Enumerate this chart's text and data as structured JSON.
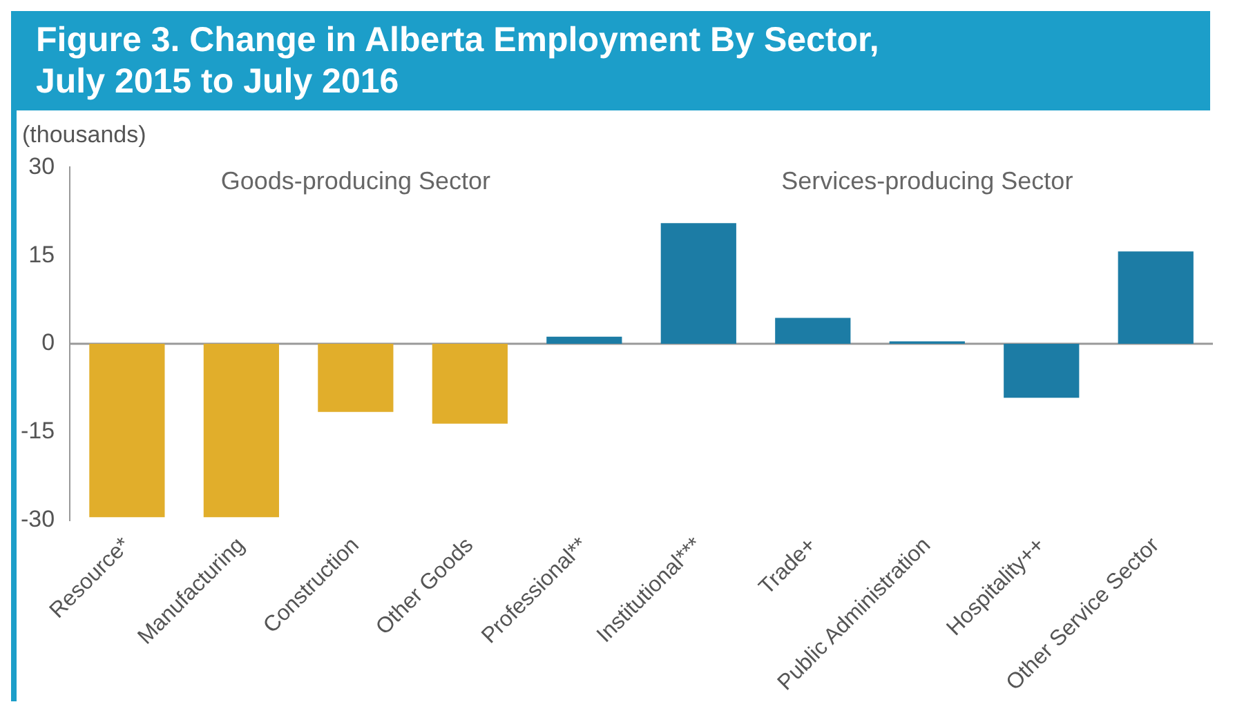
{
  "chart_data": {
    "type": "bar",
    "title": "Figure 3.  Change in Alberta Employment By Sector, July 2015 to July 2016",
    "ylabel": "(thousands)",
    "categories": [
      "Resource*",
      "Manufacturing",
      "Construction",
      "Other Goods",
      "Professional**",
      "Institutional***",
      "Trade+",
      "Public Administration",
      "Hospitality++",
      "Other Service Sector"
    ],
    "values": [
      -29.5,
      -29.5,
      -11.6,
      -13.6,
      1.2,
      20.5,
      4.4,
      0.4,
      -9.2,
      15.7
    ],
    "colors": [
      "#e1ae2b",
      "#e1ae2b",
      "#e1ae2b",
      "#e1ae2b",
      "#1c7ca5",
      "#1c7ca5",
      "#1c7ca5",
      "#1c7ca5",
      "#1c7ca5",
      "#1c7ca5"
    ],
    "annotations": [
      "Goods-producing Sector",
      "Services-producing Sector"
    ],
    "ylim": [
      -30,
      30
    ],
    "yticks": [
      -30,
      -15,
      0,
      15,
      30
    ],
    "legend": false
  }
}
